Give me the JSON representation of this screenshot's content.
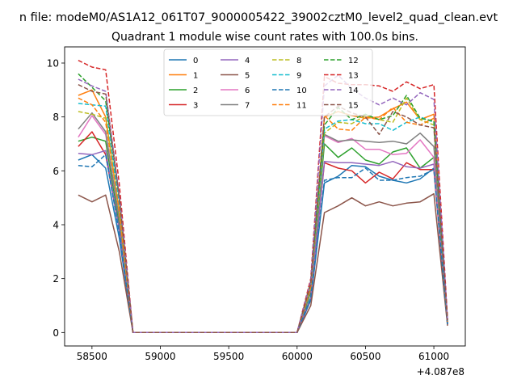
{
  "figure": {
    "suptitle": "n file: modeM0/AS1A12_061T07_9000005422_39002cztM0_level2_quad_clean.evt",
    "title": "Quadrant 1 module wise count rates with 100.0s bins.",
    "offset_label": "+4.087e8"
  },
  "chart_data": {
    "type": "line",
    "title": "Quadrant 1 module wise count rates with 100.0s bins.",
    "xlabel": "",
    "ylabel": "",
    "x_offset": 408700000,
    "xlim": [
      58300,
      61230
    ],
    "ylim": [
      -0.5,
      10.6
    ],
    "x_ticks": [
      58500,
      59000,
      59500,
      60000,
      60500,
      61000
    ],
    "x_tick_labels": [
      "58500",
      "59000",
      "59500",
      "60000",
      "60500",
      "61000"
    ],
    "y_ticks": [
      0,
      2,
      4,
      6,
      8,
      10
    ],
    "y_tick_labels": [
      "0",
      "2",
      "4",
      "6",
      "8",
      "10"
    ],
    "grid": false,
    "legend": {
      "placement": "top-center",
      "columns": 4
    },
    "x": [
      58400,
      58500,
      58600,
      58700,
      58800,
      58900,
      59000,
      59100,
      59200,
      59300,
      59400,
      59500,
      59600,
      59700,
      59800,
      59900,
      60000,
      60100,
      60200,
      60300,
      60400,
      60500,
      60600,
      60700,
      60800,
      60900,
      61000,
      61100
    ],
    "series": [
      {
        "name": "0",
        "color": "#1f77b4",
        "dash": "solid",
        "values": [
          6.4,
          6.6,
          6.1,
          3.5,
          0,
          0,
          0,
          0,
          0,
          0,
          0,
          0,
          0,
          0,
          0,
          0,
          0,
          1.2,
          5.55,
          5.8,
          6.2,
          6.15,
          5.8,
          5.65,
          5.55,
          5.7,
          6.1,
          0.3
        ]
      },
      {
        "name": "1",
        "color": "#ff7f0e",
        "dash": "solid",
        "values": [
          8.8,
          9.0,
          8.0,
          4.5,
          0,
          0,
          0,
          0,
          0,
          0,
          0,
          0,
          0,
          0,
          0,
          0,
          0,
          1.7,
          8.0,
          8.2,
          8.05,
          7.95,
          8.0,
          8.3,
          8.55,
          7.9,
          8.1,
          0.4
        ]
      },
      {
        "name": "2",
        "color": "#2ca02c",
        "dash": "solid",
        "values": [
          7.1,
          7.25,
          7.1,
          4.0,
          0,
          0,
          0,
          0,
          0,
          0,
          0,
          0,
          0,
          0,
          0,
          0,
          0,
          1.5,
          7.0,
          6.5,
          6.85,
          6.4,
          6.25,
          6.7,
          6.85,
          6.1,
          6.5,
          0.35
        ]
      },
      {
        "name": "3",
        "color": "#d62728",
        "dash": "solid",
        "values": [
          6.9,
          7.45,
          6.6,
          3.8,
          0,
          0,
          0,
          0,
          0,
          0,
          0,
          0,
          0,
          0,
          0,
          0,
          0,
          1.3,
          6.3,
          6.1,
          6.0,
          5.55,
          5.95,
          5.7,
          6.3,
          6.05,
          6.05,
          0.3
        ]
      },
      {
        "name": "4",
        "color": "#9467bd",
        "dash": "solid",
        "values": [
          6.65,
          6.6,
          6.75,
          3.8,
          0,
          0,
          0,
          0,
          0,
          0,
          0,
          0,
          0,
          0,
          0,
          0,
          0,
          1.3,
          6.35,
          6.3,
          6.3,
          6.25,
          6.2,
          6.35,
          6.15,
          6.1,
          6.25,
          0.3
        ]
      },
      {
        "name": "5",
        "color": "#8c564b",
        "dash": "solid",
        "values": [
          5.1,
          4.85,
          5.1,
          3.0,
          0,
          0,
          0,
          0,
          0,
          0,
          0,
          0,
          0,
          0,
          0,
          0,
          0,
          1.0,
          4.45,
          4.7,
          5.0,
          4.7,
          4.85,
          4.7,
          4.8,
          4.85,
          5.15,
          0.25
        ]
      },
      {
        "name": "6",
        "color": "#e377c2",
        "dash": "solid",
        "values": [
          7.25,
          8.05,
          7.35,
          4.2,
          0,
          0,
          0,
          0,
          0,
          0,
          0,
          0,
          0,
          0,
          0,
          0,
          0,
          1.6,
          7.3,
          7.05,
          7.2,
          6.8,
          6.8,
          6.6,
          6.65,
          7.15,
          6.5,
          0.35
        ]
      },
      {
        "name": "7",
        "color": "#7f7f7f",
        "dash": "solid",
        "values": [
          7.55,
          8.15,
          7.45,
          4.2,
          0,
          0,
          0,
          0,
          0,
          0,
          0,
          0,
          0,
          0,
          0,
          0,
          0,
          1.6,
          7.35,
          7.1,
          7.15,
          7.1,
          7.05,
          7.1,
          7.0,
          7.4,
          6.9,
          0.35
        ]
      },
      {
        "name": "8",
        "color": "#bcbd22",
        "dash": "dashed",
        "values": [
          8.2,
          8.1,
          7.95,
          4.5,
          0,
          0,
          0,
          0,
          0,
          0,
          0,
          0,
          0,
          0,
          0,
          0,
          0,
          1.7,
          7.4,
          7.8,
          7.75,
          8.05,
          7.9,
          7.8,
          8.7,
          7.9,
          7.7,
          0.4
        ]
      },
      {
        "name": "9",
        "color": "#17becf",
        "dash": "dashed",
        "values": [
          8.5,
          8.45,
          8.4,
          4.7,
          0,
          0,
          0,
          0,
          0,
          0,
          0,
          0,
          0,
          0,
          0,
          0,
          0,
          1.8,
          7.55,
          7.85,
          7.9,
          7.75,
          7.75,
          7.5,
          7.8,
          8.0,
          7.8,
          0.4
        ]
      },
      {
        "name": "10",
        "color": "#1f77b4",
        "dash": "dashed",
        "values": [
          6.2,
          6.15,
          6.6,
          3.7,
          0,
          0,
          0,
          0,
          0,
          0,
          0,
          0,
          0,
          0,
          0,
          0,
          0,
          1.3,
          5.65,
          5.75,
          5.75,
          6.1,
          5.65,
          5.65,
          5.75,
          5.8,
          6.05,
          0.3
        ]
      },
      {
        "name": "11",
        "color": "#ff7f0e",
        "dash": "dashed",
        "values": [
          8.7,
          8.45,
          7.8,
          4.5,
          0,
          0,
          0,
          0,
          0,
          0,
          0,
          0,
          0,
          0,
          0,
          0,
          0,
          1.7,
          8.05,
          7.55,
          7.5,
          8.0,
          7.9,
          8.35,
          7.8,
          7.7,
          7.95,
          0.4
        ]
      },
      {
        "name": "12",
        "color": "#2ca02c",
        "dash": "dashed",
        "values": [
          9.6,
          9.1,
          8.6,
          5.0,
          0,
          0,
          0,
          0,
          0,
          0,
          0,
          0,
          0,
          0,
          0,
          0,
          0,
          1.9,
          7.7,
          8.35,
          7.9,
          8.1,
          7.9,
          8.05,
          8.8,
          7.95,
          7.85,
          0.45
        ]
      },
      {
        "name": "13",
        "color": "#d62728",
        "dash": "dashed",
        "values": [
          10.1,
          9.85,
          9.75,
          5.5,
          0,
          0,
          0,
          0,
          0,
          0,
          0,
          0,
          0,
          0,
          0,
          0,
          0,
          2.0,
          9.5,
          9.25,
          9.2,
          9.2,
          9.15,
          8.95,
          9.3,
          9.05,
          9.2,
          0.5
        ]
      },
      {
        "name": "14",
        "color": "#9467bd",
        "dash": "dashed",
        "values": [
          9.4,
          9.15,
          8.95,
          5.1,
          0,
          0,
          0,
          0,
          0,
          0,
          0,
          0,
          0,
          0,
          0,
          0,
          0,
          1.9,
          9.15,
          9.55,
          9.05,
          8.7,
          8.45,
          8.7,
          8.45,
          8.9,
          8.65,
          0.45
        ]
      },
      {
        "name": "15",
        "color": "#8c564b",
        "dash": "dashed",
        "values": [
          9.2,
          8.95,
          8.85,
          5.0,
          0,
          0,
          0,
          0,
          0,
          0,
          0,
          0,
          0,
          0,
          0,
          0,
          0,
          1.8,
          8.0,
          8.4,
          8.15,
          8.0,
          7.35,
          8.2,
          8.0,
          7.7,
          7.6,
          0.45
        ]
      }
    ]
  }
}
